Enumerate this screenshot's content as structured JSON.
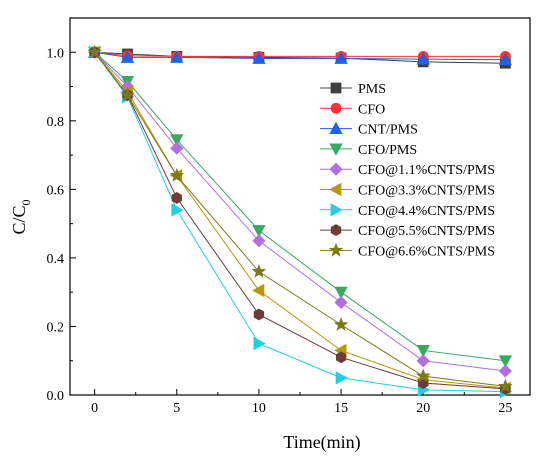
{
  "chart_data": {
    "type": "line",
    "xlabel": "Time(min)",
    "ylabel_main": "C/C",
    "ylabel_sub": "0",
    "xlim": [
      -1.5,
      26.5
    ],
    "ylim": [
      0,
      1.1
    ],
    "x_ticks": [
      0,
      5,
      10,
      15,
      20,
      25
    ],
    "y_ticks": [
      0.0,
      0.2,
      0.4,
      0.6,
      0.8,
      1.0
    ],
    "x_tick_labels": [
      "0",
      "5",
      "10",
      "15",
      "20",
      "25"
    ],
    "y_tick_labels": [
      "0.0",
      "0.2",
      "0.4",
      "0.6",
      "0.8",
      "1.0"
    ],
    "legend_position": "right",
    "x": [
      0,
      2,
      5,
      10,
      15,
      20,
      25
    ],
    "series": [
      {
        "name": "PMS",
        "color": "#3f3f3f",
        "marker": "square",
        "values": [
          1.0,
          0.995,
          0.988,
          0.985,
          0.983,
          0.972,
          0.968
        ]
      },
      {
        "name": "CFO",
        "color": "#ff3333",
        "marker": "circle",
        "values": [
          1.0,
          0.99,
          0.988,
          0.988,
          0.988,
          0.988,
          0.988
        ]
      },
      {
        "name": "CNT/PMS",
        "color": "#1f63e0",
        "marker": "triangle-up",
        "values": [
          1.0,
          0.985,
          0.985,
          0.982,
          0.982,
          0.98,
          0.978
        ]
      },
      {
        "name": "CFO/PMS",
        "color": "#3aa861",
        "marker": "triangle-down",
        "values": [
          1.0,
          0.915,
          0.745,
          0.48,
          0.3,
          0.13,
          0.1
        ]
      },
      {
        "name": "CFO@1.1%CNTS/PMS",
        "color": "#b070e0",
        "marker": "diamond",
        "values": [
          1.0,
          0.9,
          0.72,
          0.45,
          0.27,
          0.1,
          0.07
        ]
      },
      {
        "name": "CFO@3.3%CNTS/PMS",
        "color": "#b8960a",
        "marker": "triangle-left",
        "values": [
          1.0,
          0.885,
          0.64,
          0.305,
          0.13,
          0.045,
          0.02
        ]
      },
      {
        "name": "CFO@4.4%CNTS/PMS",
        "color": "#20cfe0",
        "marker": "triangle-right",
        "values": [
          1.0,
          0.87,
          0.54,
          0.15,
          0.05,
          0.015,
          0.01
        ]
      },
      {
        "name": "CFO@5.5%CNTS/PMS",
        "color": "#6e3a3a",
        "marker": "hexagon",
        "values": [
          1.0,
          0.875,
          0.575,
          0.235,
          0.11,
          0.035,
          0.018
        ]
      },
      {
        "name": "CFO@6.6%CNTS/PMS",
        "color": "#7a7a1a",
        "marker": "star",
        "values": [
          1.0,
          0.875,
          0.64,
          0.36,
          0.205,
          0.055,
          0.025
        ]
      }
    ]
  }
}
